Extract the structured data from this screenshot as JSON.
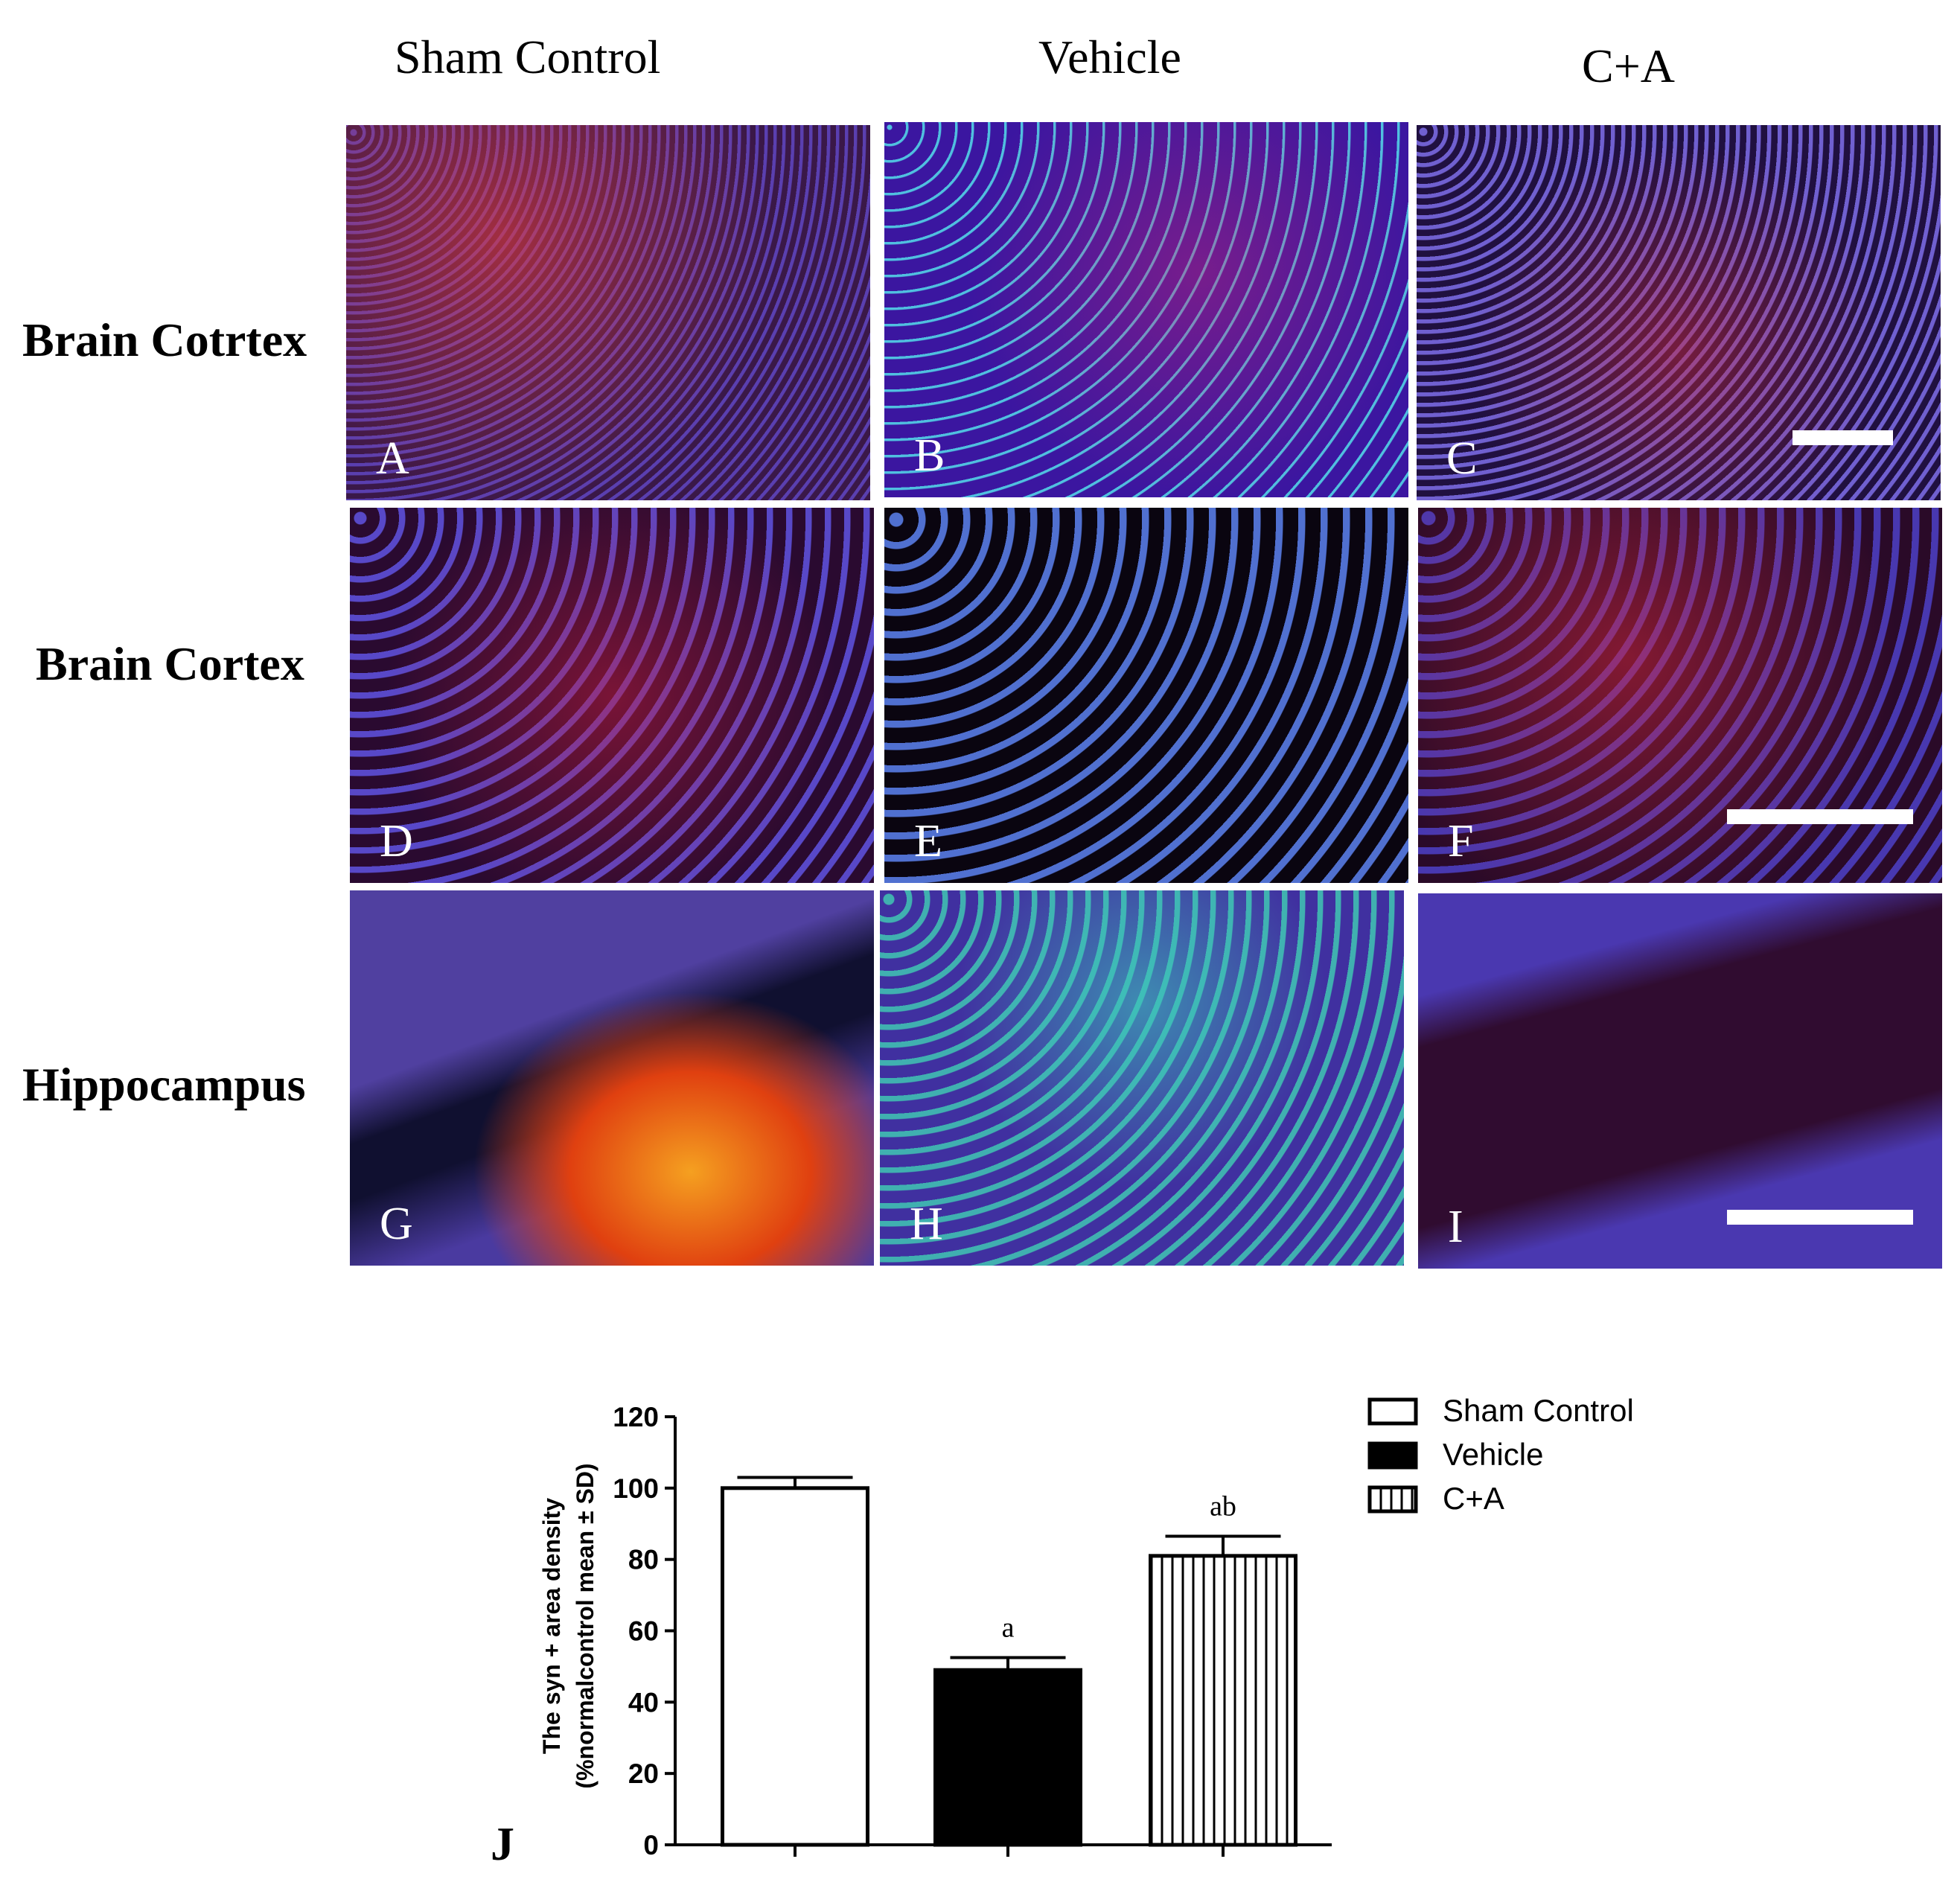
{
  "column_headers": [
    "Sham  Control",
    "Vehicle",
    "C+A"
  ],
  "row_labels": [
    "Brain Cotrtex",
    "Brain Cortex",
    "Hippocampus"
  ],
  "panel_letters": [
    "A",
    "B",
    "C",
    "D",
    "E",
    "F",
    "G",
    "H",
    "I"
  ],
  "chart_data": {
    "type": "bar",
    "panel_letter": "J",
    "ylabel": [
      "The syn + area density",
      "(%normalcontrol mean ± SD)"
    ],
    "categories": [
      null,
      null,
      null
    ],
    "series": [
      {
        "name": "Sham Control",
        "color": "#ffffff",
        "pattern": "solid",
        "values": [
          100,
          null,
          null
        ],
        "errors": [
          3,
          null,
          null
        ],
        "annotations": [
          null,
          null,
          null
        ]
      },
      {
        "name": "Vehicle",
        "color": "#000000",
        "pattern": "solid",
        "values": [
          null,
          49,
          null
        ],
        "errors": [
          null,
          3.5,
          null
        ],
        "annotations": [
          null,
          "a",
          null
        ]
      },
      {
        "name": "C+A",
        "color": "#ffffff",
        "pattern": "vertical-stripes",
        "values": [
          null,
          null,
          81
        ],
        "errors": [
          null,
          null,
          5.5
        ],
        "annotations": [
          null,
          null,
          "ab"
        ]
      }
    ],
    "ylim": [
      0,
      120
    ],
    "yticks": [
      0,
      20,
      40,
      60,
      80,
      100,
      120
    ]
  }
}
